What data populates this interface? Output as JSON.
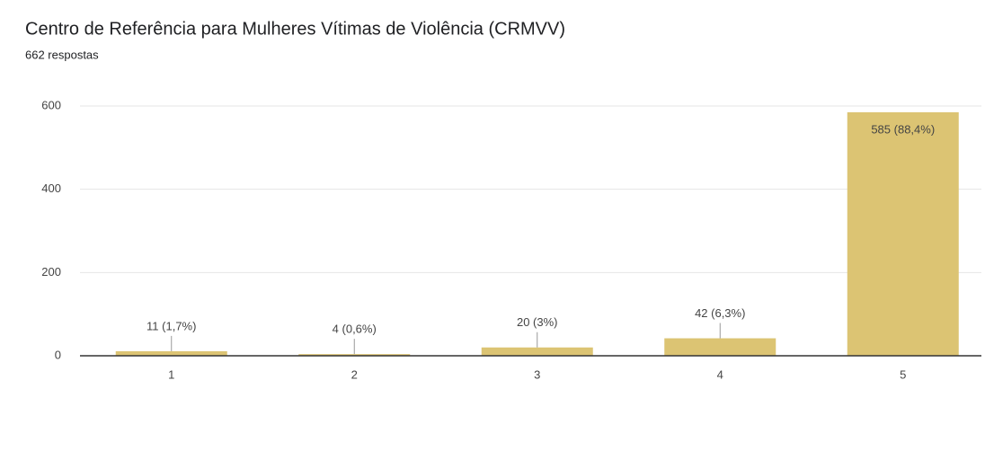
{
  "chart_data": {
    "type": "bar",
    "title": "Centro de Referência para Mulheres Vítimas de Violência (CRMVV)",
    "subtitle": "662 respostas",
    "categories": [
      "1",
      "2",
      "3",
      "4",
      "5"
    ],
    "values": [
      11,
      4,
      20,
      42,
      585
    ],
    "value_labels": [
      "11 (1,7%)",
      "4 (0,6%)",
      "20 (3%)",
      "42 (6,3%)",
      "585 (88,4%)"
    ],
    "color": "#dcc473",
    "ylim": [
      0,
      600
    ],
    "yticks": [
      0,
      200,
      400,
      600
    ],
    "grid": true
  }
}
